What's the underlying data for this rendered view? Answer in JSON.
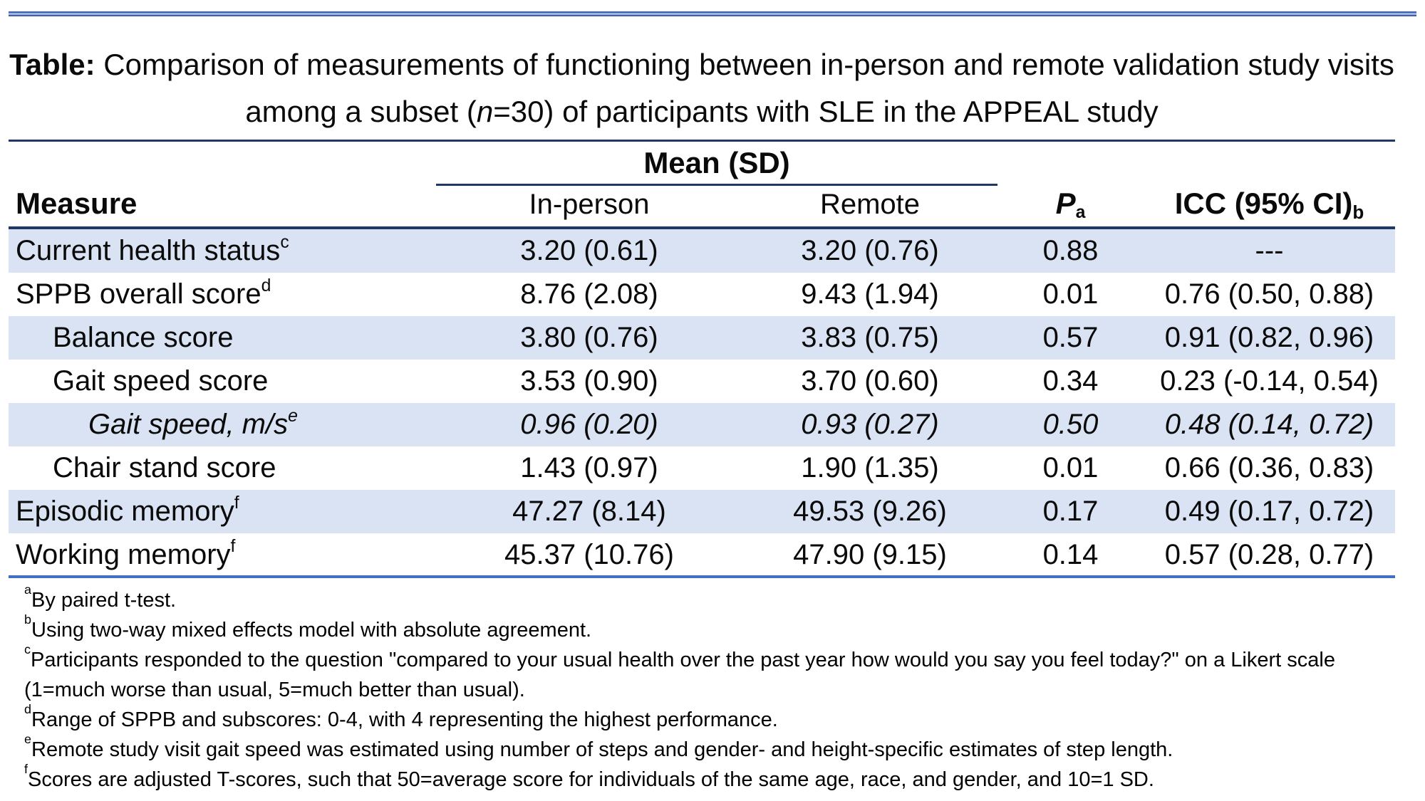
{
  "title": {
    "label": "Table:",
    "before_n": " Comparison of measurements of functioning between in-person and remote validation study visits among a subset (",
    "n_italic": "n",
    "after_n": "=30) of participants with SLE in the APPEAL study"
  },
  "table": {
    "group_header": "Mean (SD)",
    "columns": {
      "measure": "Measure",
      "in_person": "In-person",
      "remote": "Remote",
      "p": "P",
      "p_sup": "a",
      "icc": "ICC (95% CI)",
      "icc_sup": "b"
    },
    "rows": [
      {
        "measure": "Current health status",
        "sup": "c",
        "indent": 0,
        "italic": false,
        "in_person": "3.20 (0.61)",
        "remote": "3.20 (0.76)",
        "p": "0.88",
        "icc": "---"
      },
      {
        "measure": "SPPB overall score",
        "sup": "d",
        "indent": 0,
        "italic": false,
        "in_person": "8.76 (2.08)",
        "remote": "9.43 (1.94)",
        "p": "0.01",
        "icc": "0.76 (0.50, 0.88)"
      },
      {
        "measure": "Balance score",
        "sup": "",
        "indent": 1,
        "italic": false,
        "in_person": "3.80 (0.76)",
        "remote": "3.83 (0.75)",
        "p": "0.57",
        "icc": "0.91 (0.82, 0.96)"
      },
      {
        "measure": "Gait speed score",
        "sup": "",
        "indent": 1,
        "italic": false,
        "in_person": "3.53 (0.90)",
        "remote": "3.70 (0.60)",
        "p": "0.34",
        "icc": "0.23 (-0.14, 0.54)"
      },
      {
        "measure": "Gait speed, m/s",
        "sup": "e",
        "indent": 2,
        "italic": true,
        "in_person": "0.96 (0.20)",
        "remote": "0.93 (0.27)",
        "p": "0.50",
        "icc": "0.48 (0.14, 0.72)"
      },
      {
        "measure": "Chair stand score",
        "sup": "",
        "indent": 1,
        "italic": false,
        "in_person": "1.43 (0.97)",
        "remote": "1.90 (1.35)",
        "p": "0.01",
        "icc": "0.66 (0.36, 0.83)"
      },
      {
        "measure": "Episodic memory",
        "sup": "f",
        "indent": 0,
        "italic": false,
        "in_person": "47.27 (8.14)",
        "remote": "49.53 (9.26)",
        "p": "0.17",
        "icc": "0.49 (0.17, 0.72)"
      },
      {
        "measure": "Working memory",
        "sup": "f",
        "indent": 0,
        "italic": false,
        "in_person": "45.37 (10.76)",
        "remote": "47.90 (9.15)",
        "p": "0.14",
        "icc": "0.57 (0.28, 0.77)"
      }
    ]
  },
  "footnotes": [
    {
      "sup": "a",
      "text": "By paired t-test."
    },
    {
      "sup": "b",
      "text": "Using two-way mixed effects model with absolute agreement."
    },
    {
      "sup": "c",
      "text": "Participants responded to the question \"compared to your usual health over the past year how would you say you feel today?\" on a Likert scale (1=much worse than usual, 5=much better than usual)."
    },
    {
      "sup": "d",
      "text": "Range of SPPB and subscores: 0-4, with 4 representing the highest performance."
    },
    {
      "sup": "e",
      "text": "Remote study visit gait speed was estimated using number of steps and gender- and height-specific estimates of step length."
    },
    {
      "sup": "f",
      "text": "Scores are adjusted T-scores, such that 50=average score for individuals of the same age, race, and gender, and 10=1 SD."
    }
  ],
  "colors": {
    "band_blue": "#DAE3F3",
    "navy_rule": "#1F3864",
    "blue_rule": "#4070C4",
    "blue_rule_light": "#9FB2DC"
  }
}
